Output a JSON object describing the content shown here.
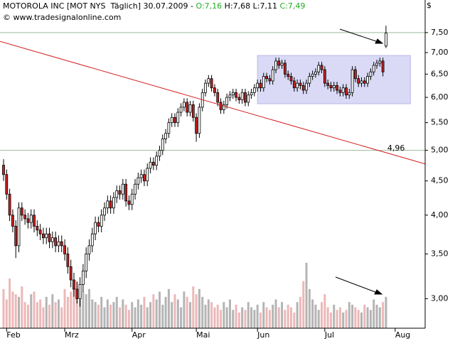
{
  "chart_data": {
    "type": "candlestick",
    "header": {
      "title": "MOTOROLA INC [MOT NYS  Täglich] 30.07.2009 -",
      "open": "O:7,16",
      "high": "H:7,68",
      "low": "L:7,11",
      "close": "C:7,49"
    },
    "source": "© www.tradesignalonline.com",
    "currency": "$",
    "log_scale": true,
    "ylim": [
      2.71,
      8.39
    ],
    "yticks": [
      {
        "value": 3.0,
        "label": "3,00"
      },
      {
        "value": 3.5,
        "label": "3,50"
      },
      {
        "value": 4.0,
        "label": "4,00"
      },
      {
        "value": 4.5,
        "label": "4,50"
      },
      {
        "value": 5.0,
        "label": "5,00"
      },
      {
        "value": 5.5,
        "label": "5,50"
      },
      {
        "value": 6.0,
        "label": "6,00"
      },
      {
        "value": 6.5,
        "label": "6,50"
      },
      {
        "value": 7.0,
        "label": "7,00"
      },
      {
        "value": 7.5,
        "label": "7,50"
      }
    ],
    "xlim": [
      -1.16,
      137.8
    ],
    "xticks": [
      {
        "value": 1,
        "label": "Feb"
      },
      {
        "value": 20,
        "label": "Mrz"
      },
      {
        "value": 42,
        "label": "Apr"
      },
      {
        "value": 63,
        "label": "Mai"
      },
      {
        "value": 83,
        "label": "Jun"
      },
      {
        "value": 105,
        "label": "Jul"
      },
      {
        "value": 128,
        "label": "Aug"
      }
    ],
    "up_color": "#ffffff",
    "down_color": "#cc2020",
    "volume_up_color": "#b4b4b4",
    "volume_down_color": "#ecb8b8",
    "hlines": [
      7.5,
      5.0
    ],
    "trendline": {
      "start": 7.25,
      "end": {
        "value": 4.96,
        "label": "4,96"
      },
      "color": "#d42020"
    },
    "box": {
      "x": [
        83,
        133
      ],
      "y": [
        5.87,
        6.93
      ],
      "color": "#dadaf6"
    },
    "ohlc": [
      [
        4.75,
        4.85,
        4.5,
        4.6
      ],
      [
        4.6,
        4.68,
        4.22,
        4.3
      ],
      [
        4.3,
        4.38,
        3.92,
        4.0
      ],
      [
        4.0,
        4.08,
        3.77,
        3.85
      ],
      [
        3.85,
        3.93,
        3.45,
        3.6
      ],
      [
        3.6,
        4.18,
        3.52,
        4.1
      ],
      [
        4.1,
        4.18,
        3.92,
        4.0
      ],
      [
        4.0,
        4.08,
        3.87,
        3.95
      ],
      [
        3.95,
        4.03,
        3.82,
        3.9
      ],
      [
        3.9,
        4.08,
        3.82,
        4.0
      ],
      [
        4.0,
        4.08,
        3.77,
        3.85
      ],
      [
        3.85,
        3.93,
        3.72,
        3.8
      ],
      [
        3.8,
        3.88,
        3.67,
        3.75
      ],
      [
        3.75,
        3.83,
        3.62,
        3.7
      ],
      [
        3.7,
        3.83,
        3.62,
        3.75
      ],
      [
        3.75,
        3.83,
        3.57,
        3.65
      ],
      [
        3.65,
        3.78,
        3.57,
        3.7
      ],
      [
        3.7,
        3.78,
        3.52,
        3.6
      ],
      [
        3.6,
        3.73,
        3.52,
        3.65
      ],
      [
        3.65,
        3.73,
        3.52,
        3.6
      ],
      [
        3.6,
        3.68,
        3.42,
        3.5
      ],
      [
        3.5,
        3.58,
        3.27,
        3.35
      ],
      [
        3.35,
        3.43,
        3.12,
        3.2
      ],
      [
        3.2,
        3.28,
        3.02,
        3.1
      ],
      [
        3.1,
        3.18,
        2.95,
        3.0
      ],
      [
        3.0,
        3.23,
        2.92,
        3.15
      ],
      [
        3.15,
        3.38,
        3.07,
        3.3
      ],
      [
        3.3,
        3.58,
        3.22,
        3.5
      ],
      [
        3.5,
        3.68,
        3.42,
        3.6
      ],
      [
        3.6,
        3.83,
        3.52,
        3.75
      ],
      [
        3.75,
        3.98,
        3.67,
        3.9
      ],
      [
        3.9,
        3.98,
        3.77,
        3.85
      ],
      [
        3.85,
        4.08,
        3.77,
        4.0
      ],
      [
        4.0,
        4.18,
        3.92,
        4.1
      ],
      [
        4.1,
        4.28,
        4.02,
        4.2
      ],
      [
        4.2,
        4.28,
        4.02,
        4.1
      ],
      [
        4.1,
        4.33,
        4.02,
        4.25
      ],
      [
        4.25,
        4.43,
        4.17,
        4.35
      ],
      [
        4.35,
        4.43,
        4.22,
        4.3
      ],
      [
        4.3,
        4.53,
        4.22,
        4.45
      ],
      [
        4.45,
        4.53,
        4.12,
        4.2
      ],
      [
        4.2,
        4.28,
        4.07,
        4.15
      ],
      [
        4.15,
        4.38,
        4.07,
        4.3
      ],
      [
        4.3,
        4.53,
        4.22,
        4.45
      ],
      [
        4.45,
        4.63,
        4.37,
        4.55
      ],
      [
        4.55,
        4.68,
        4.47,
        4.6
      ],
      [
        4.6,
        4.68,
        4.42,
        4.5
      ],
      [
        4.5,
        4.78,
        4.42,
        4.7
      ],
      [
        4.7,
        4.88,
        4.62,
        4.8
      ],
      [
        4.8,
        4.88,
        4.67,
        4.75
      ],
      [
        4.75,
        4.98,
        4.67,
        4.9
      ],
      [
        4.9,
        5.08,
        4.82,
        5.0
      ],
      [
        5.0,
        5.28,
        4.92,
        5.2
      ],
      [
        5.2,
        5.38,
        5.12,
        5.3
      ],
      [
        5.3,
        5.58,
        5.22,
        5.5
      ],
      [
        5.5,
        5.68,
        5.42,
        5.6
      ],
      [
        5.6,
        5.68,
        5.42,
        5.5
      ],
      [
        5.5,
        5.78,
        5.42,
        5.7
      ],
      [
        5.7,
        5.88,
        5.62,
        5.8
      ],
      [
        5.8,
        5.98,
        5.72,
        5.9
      ],
      [
        5.9,
        5.98,
        5.62,
        5.7
      ],
      [
        5.7,
        5.93,
        5.62,
        5.85
      ],
      [
        5.85,
        5.93,
        5.52,
        5.6
      ],
      [
        5.6,
        5.68,
        5.15,
        5.3
      ],
      [
        5.3,
        5.88,
        5.22,
        5.8
      ],
      [
        5.8,
        6.18,
        5.72,
        6.1
      ],
      [
        6.1,
        6.38,
        6.02,
        6.3
      ],
      [
        6.3,
        6.48,
        6.22,
        6.4
      ],
      [
        6.4,
        6.48,
        6.12,
        6.2
      ],
      [
        6.2,
        6.28,
        6.02,
        6.1
      ],
      [
        6.1,
        6.18,
        5.82,
        5.9
      ],
      [
        5.9,
        5.98,
        5.67,
        5.75
      ],
      [
        5.75,
        5.93,
        5.67,
        5.85
      ],
      [
        5.85,
        6.08,
        5.77,
        6.0
      ],
      [
        6.0,
        6.13,
        5.92,
        6.05
      ],
      [
        6.05,
        6.18,
        5.97,
        6.1
      ],
      [
        6.1,
        6.18,
        5.92,
        6.0
      ],
      [
        6.0,
        6.08,
        5.87,
        5.95
      ],
      [
        5.95,
        6.18,
        5.87,
        6.1
      ],
      [
        6.1,
        6.18,
        5.82,
        5.9
      ],
      [
        5.9,
        6.13,
        5.82,
        6.05
      ],
      [
        6.05,
        6.18,
        5.97,
        6.1
      ],
      [
        6.1,
        6.28,
        6.02,
        6.2
      ],
      [
        6.2,
        6.38,
        6.12,
        6.3
      ],
      [
        6.3,
        6.38,
        6.12,
        6.2
      ],
      [
        6.2,
        6.53,
        6.12,
        6.45
      ],
      [
        6.45,
        6.53,
        6.32,
        6.4
      ],
      [
        6.4,
        6.48,
        6.27,
        6.35
      ],
      [
        6.35,
        6.68,
        6.27,
        6.6
      ],
      [
        6.6,
        6.88,
        6.52,
        6.8
      ],
      [
        6.8,
        6.88,
        6.62,
        6.7
      ],
      [
        6.7,
        6.83,
        6.62,
        6.75
      ],
      [
        6.75,
        6.83,
        6.42,
        6.5
      ],
      [
        6.5,
        6.58,
        6.37,
        6.45
      ],
      [
        6.45,
        6.53,
        6.27,
        6.35
      ],
      [
        6.35,
        6.43,
        6.12,
        6.2
      ],
      [
        6.2,
        6.38,
        6.12,
        6.3
      ],
      [
        6.3,
        6.38,
        6.17,
        6.25
      ],
      [
        6.25,
        6.33,
        6.07,
        6.15
      ],
      [
        6.15,
        6.38,
        6.07,
        6.3
      ],
      [
        6.3,
        6.53,
        6.22,
        6.45
      ],
      [
        6.45,
        6.58,
        6.37,
        6.5
      ],
      [
        6.5,
        6.63,
        6.42,
        6.55
      ],
      [
        6.55,
        6.78,
        6.47,
        6.7
      ],
      [
        6.7,
        6.78,
        6.52,
        6.6
      ],
      [
        6.6,
        6.68,
        6.22,
        6.3
      ],
      [
        6.3,
        6.38,
        6.17,
        6.25
      ],
      [
        6.25,
        6.33,
        6.12,
        6.2
      ],
      [
        6.2,
        6.33,
        6.12,
        6.25
      ],
      [
        6.25,
        6.33,
        6.07,
        6.15
      ],
      [
        6.15,
        6.23,
        6.02,
        6.1
      ],
      [
        6.1,
        6.28,
        6.02,
        6.2
      ],
      [
        6.2,
        6.28,
        5.97,
        6.05
      ],
      [
        6.05,
        6.18,
        5.97,
        6.1
      ],
      [
        6.1,
        6.68,
        6.02,
        6.6
      ],
      [
        6.6,
        6.68,
        6.32,
        6.4
      ],
      [
        6.4,
        6.48,
        6.22,
        6.3
      ],
      [
        6.3,
        6.43,
        6.22,
        6.35
      ],
      [
        6.35,
        6.43,
        6.22,
        6.3
      ],
      [
        6.3,
        6.53,
        6.22,
        6.45
      ],
      [
        6.45,
        6.63,
        6.37,
        6.55
      ],
      [
        6.55,
        6.78,
        6.47,
        6.7
      ],
      [
        6.7,
        6.83,
        6.62,
        6.75
      ],
      [
        6.75,
        6.88,
        6.67,
        6.8
      ],
      [
        6.8,
        6.88,
        6.45,
        6.55
      ],
      [
        7.16,
        7.68,
        7.11,
        7.49
      ]
    ],
    "volume": [
      30,
      22,
      38,
      28,
      26,
      24,
      32,
      20,
      18,
      26,
      28,
      20,
      22,
      16,
      24,
      18,
      26,
      20,
      22,
      16,
      30,
      24,
      28,
      32,
      36,
      22,
      28,
      26,
      30,
      22,
      20,
      18,
      24,
      16,
      22,
      18,
      20,
      24,
      16,
      22,
      18,
      14,
      20,
      16,
      22,
      18,
      24,
      16,
      20,
      26,
      22,
      28,
      18,
      24,
      30,
      20,
      26,
      22,
      16,
      28,
      24,
      20,
      32,
      26,
      30,
      24,
      18,
      22,
      20,
      16,
      18,
      14,
      20,
      16,
      22,
      14,
      18,
      12,
      16,
      14,
      20,
      16,
      14,
      18,
      12,
      20,
      16,
      14,
      18,
      22,
      16,
      20,
      14,
      18,
      16,
      12,
      20,
      24,
      36,
      50,
      30,
      22,
      18,
      14,
      20,
      26,
      16,
      12,
      18,
      14,
      16,
      12,
      14,
      20,
      18,
      16,
      14,
      12,
      18,
      16,
      14,
      22,
      18,
      16,
      20,
      24
    ]
  }
}
